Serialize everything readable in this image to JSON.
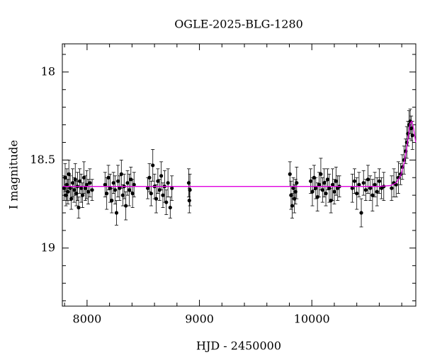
{
  "chart_data": {
    "type": "scatter",
    "title": "OGLE-2025-BLG-1280",
    "x_label": "HJD - 2450000",
    "y_label": "I magnitude",
    "xlim": [
      7780,
      10925
    ],
    "ylim": [
      19.33,
      17.84
    ],
    "xticks": [
      8000,
      9000,
      10000
    ],
    "yticks": [
      18,
      18.5,
      19
    ],
    "xminorticks": [
      7800,
      8200,
      8400,
      8600,
      8800,
      9200,
      9400,
      9600,
      9800,
      10200,
      10400,
      10600,
      10800
    ],
    "yminorticks": [
      17.9,
      18.1,
      18.2,
      18.3,
      18.4,
      18.6,
      18.7,
      18.8,
      18.9,
      19.1,
      19.2,
      19.3
    ],
    "color": "#000000",
    "x": [
      7795,
      7805,
      7812,
      7820,
      7830,
      7838,
      7850,
      7860,
      7872,
      7885,
      7895,
      7905,
      7915,
      7925,
      7935,
      7948,
      7960,
      7972,
      7985,
      7998,
      8010,
      8025,
      8045,
      8160,
      8175,
      8190,
      8205,
      8220,
      8235,
      8250,
      8262,
      8275,
      8290,
      8305,
      8318,
      8330,
      8345,
      8360,
      8375,
      8390,
      8405,
      8418,
      8540,
      8555,
      8570,
      8585,
      8600,
      8615,
      8630,
      8645,
      8660,
      8675,
      8690,
      8705,
      8720,
      8740,
      8755,
      8905,
      8910,
      8915,
      9805,
      9815,
      9825,
      9835,
      9845,
      9855,
      9865,
      9990,
      10005,
      10020,
      10035,
      10050,
      10065,
      10080,
      10095,
      10110,
      10125,
      10140,
      10155,
      10170,
      10185,
      10200,
      10215,
      10230,
      10245,
      10360,
      10380,
      10400,
      10420,
      10440,
      10460,
      10480,
      10500,
      10520,
      10540,
      10560,
      10580,
      10600,
      10620,
      10640,
      10710,
      10730,
      10750,
      10770,
      10790,
      10805,
      10820,
      10835,
      10845,
      10855,
      10865,
      10875,
      10885,
      10895
    ],
    "values": [
      18.66,
      18.6,
      18.7,
      18.64,
      18.68,
      18.58,
      18.66,
      18.72,
      18.63,
      18.67,
      18.61,
      18.69,
      18.65,
      18.77,
      18.62,
      18.66,
      18.7,
      18.6,
      18.66,
      18.64,
      18.68,
      18.63,
      18.67,
      18.64,
      18.69,
      18.6,
      18.66,
      18.73,
      18.63,
      18.67,
      18.8,
      18.62,
      18.66,
      18.58,
      18.7,
      18.65,
      18.76,
      18.63,
      18.67,
      18.61,
      18.69,
      18.64,
      18.66,
      18.6,
      18.69,
      18.53,
      18.65,
      18.72,
      18.62,
      18.67,
      18.59,
      18.7,
      18.65,
      18.74,
      18.63,
      18.77,
      18.66,
      18.63,
      18.73,
      18.67,
      18.58,
      18.7,
      18.76,
      18.66,
      18.72,
      18.68,
      18.63,
      18.62,
      18.68,
      18.6,
      18.66,
      18.71,
      18.64,
      18.58,
      18.67,
      18.63,
      18.69,
      18.61,
      18.66,
      18.73,
      18.64,
      18.68,
      18.62,
      18.66,
      18.65,
      18.66,
      18.62,
      18.69,
      18.64,
      18.8,
      18.63,
      18.67,
      18.61,
      18.66,
      18.7,
      18.64,
      18.68,
      18.62,
      18.66,
      18.65,
      18.66,
      18.63,
      18.64,
      18.6,
      18.58,
      18.54,
      18.5,
      18.45,
      18.4,
      18.35,
      18.3,
      18.28,
      18.32,
      18.36
    ],
    "errors": [
      0.07,
      0.08,
      0.06,
      0.09,
      0.07,
      0.08,
      0.07,
      0.06,
      0.08,
      0.07,
      0.09,
      0.07,
      0.08,
      0.06,
      0.07,
      0.08,
      0.07,
      0.09,
      0.07,
      0.08,
      0.07,
      0.08,
      0.06,
      0.07,
      0.09,
      0.07,
      0.08,
      0.07,
      0.06,
      0.08,
      0.07,
      0.09,
      0.07,
      0.08,
      0.06,
      0.07,
      0.08,
      0.07,
      0.09,
      0.07,
      0.08,
      0.07,
      0.06,
      0.08,
      0.07,
      0.09,
      0.07,
      0.08,
      0.07,
      0.06,
      0.08,
      0.07,
      0.09,
      0.07,
      0.08,
      0.06,
      0.07,
      0.08,
      0.07,
      0.09,
      0.07,
      0.08,
      0.07,
      0.06,
      0.08,
      0.07,
      0.09,
      0.07,
      0.08,
      0.07,
      0.06,
      0.08,
      0.07,
      0.09,
      0.07,
      0.08,
      0.07,
      0.06,
      0.08,
      0.07,
      0.09,
      0.07,
      0.08,
      0.07,
      0.06,
      0.08,
      0.07,
      0.09,
      0.07,
      0.08,
      0.07,
      0.06,
      0.08,
      0.07,
      0.09,
      0.07,
      0.08,
      0.07,
      0.06,
      0.08,
      0.07,
      0.08,
      0.07,
      0.09,
      0.06,
      0.07,
      0.08,
      0.07,
      0.09,
      0.07,
      0.08,
      0.07,
      0.07,
      0.08
    ],
    "model": {
      "color": "#e000e0",
      "x": [
        7780,
        10600,
        10700,
        10750,
        10790,
        10820,
        10840,
        10860,
        10875,
        10890,
        10905,
        10925
      ],
      "values": [
        18.65,
        18.65,
        18.645,
        18.63,
        18.59,
        18.52,
        18.45,
        18.36,
        18.29,
        18.28,
        18.32,
        18.4
      ]
    }
  }
}
